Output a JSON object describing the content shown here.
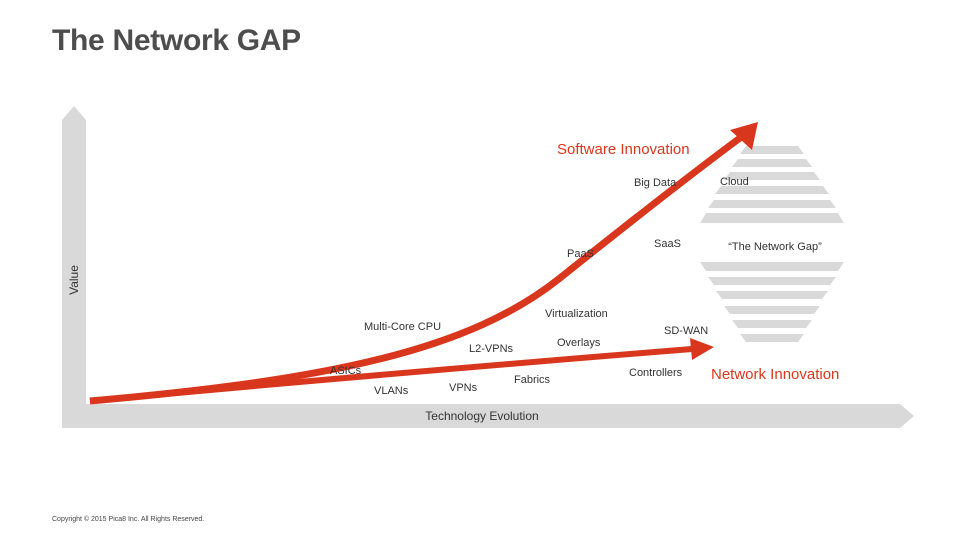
{
  "title": "The Network GAP",
  "colors": {
    "accent": "#d9361e",
    "axis": "#d9d9d9",
    "gap": "#d9d9d9",
    "text": "#333333",
    "title": "#4d4d4d"
  },
  "axes": {
    "x_label": "Technology Evolution",
    "y_label": "Value"
  },
  "curves": {
    "software": "Software Innovation",
    "network": "Network Innovation"
  },
  "gap_label": "“The Network Gap”",
  "labels": {
    "asics": "ASICs",
    "vlans": "VLANs",
    "multicore": "Multi-Core CPU",
    "vpns": "VPNs",
    "l2vpns": "L2-VPNs",
    "fabrics": "Fabrics",
    "virtualization": "Virtualization",
    "overlays": "Overlays",
    "paas": "PaaS",
    "saas": "SaaS",
    "bigdata": "Big Data",
    "cloud": "Cloud",
    "sdwan": "SD-WAN",
    "controllers": "Controllers"
  },
  "footer": "Copyright © 2015 Pica8 Inc. All Rights Reserved."
}
